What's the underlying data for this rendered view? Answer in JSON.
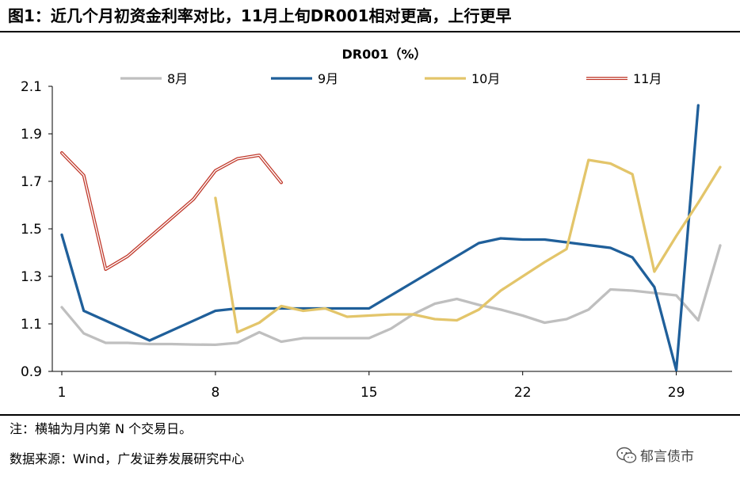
{
  "figure": {
    "title": "图1：近几个月初资金利率对比，11月上旬DR001相对更高，上行更早",
    "note": "注：横轴为月内第 N 个交易日。",
    "source": "数据来源：Wind，广发证券发展研究中心",
    "watermark": "郁言债市",
    "watermark_icon": "wechat-icon"
  },
  "chart_data": {
    "type": "line",
    "title": "DR001（%）",
    "xlabel": "",
    "ylabel": "",
    "xlim": [
      1,
      31
    ],
    "ylim": [
      0.9,
      2.1
    ],
    "xticks": [
      1,
      8,
      15,
      22,
      29
    ],
    "yticks": [
      0.9,
      1.1,
      1.3,
      1.5,
      1.7,
      1.9,
      2.1
    ],
    "ytick_labels": [
      "0.9",
      "1.1",
      "1.3",
      "1.5",
      "1.7",
      "1.9",
      "2.1"
    ],
    "grid": false,
    "legend_position": "top",
    "series": [
      {
        "name": "8月",
        "color": "#BFBFBF",
        "style": "solid",
        "x": [
          1,
          2,
          3,
          4,
          5,
          6,
          7,
          8,
          9,
          10,
          11,
          12,
          13,
          14,
          15,
          16,
          17,
          18,
          19,
          20,
          21,
          22,
          23,
          24,
          25,
          26,
          27,
          28,
          29,
          30,
          31
        ],
        "values": [
          1.17,
          1.06,
          1.02,
          1.02,
          1.015,
          1.015,
          1.013,
          1.012,
          1.02,
          1.065,
          1.025,
          1.04,
          1.04,
          1.04,
          1.04,
          1.08,
          1.14,
          1.185,
          1.205,
          1.18,
          1.16,
          1.135,
          1.105,
          1.12,
          1.16,
          1.245,
          1.24,
          1.23,
          1.22,
          1.115,
          1.43
        ]
      },
      {
        "name": "9月",
        "color": "#1F5F9A",
        "style": "solid",
        "x": [
          1,
          2,
          5,
          8,
          9,
          15,
          16,
          20,
          21,
          22,
          23,
          26,
          27,
          28,
          29,
          30
        ],
        "values": [
          1.475,
          1.155,
          1.03,
          1.155,
          1.165,
          1.165,
          1.22,
          1.44,
          1.46,
          1.455,
          1.455,
          1.42,
          1.38,
          1.255,
          0.905,
          2.02
        ]
      },
      {
        "name": "10月",
        "color": "#E3C56A",
        "style": "solid",
        "x": [
          8,
          9,
          10,
          11,
          12,
          13,
          14,
          15,
          16,
          17,
          18,
          19,
          20,
          21,
          22,
          23,
          24,
          25,
          26,
          27,
          28,
          29,
          30,
          31
        ],
        "values": [
          1.63,
          1.065,
          1.105,
          1.175,
          1.155,
          1.165,
          1.13,
          1.135,
          1.14,
          1.14,
          1.12,
          1.115,
          1.16,
          1.24,
          1.3,
          1.36,
          1.415,
          1.79,
          1.775,
          1.73,
          1.32,
          1.47,
          1.61,
          1.76
        ]
      },
      {
        "name": "11月",
        "color": "#C0392B",
        "style": "double",
        "x": [
          1,
          2,
          3,
          4,
          5,
          6,
          7,
          8,
          9,
          10,
          11
        ],
        "values": [
          1.82,
          1.725,
          1.33,
          1.385,
          1.465,
          1.545,
          1.625,
          1.745,
          1.795,
          1.81,
          1.695
        ]
      }
    ]
  }
}
